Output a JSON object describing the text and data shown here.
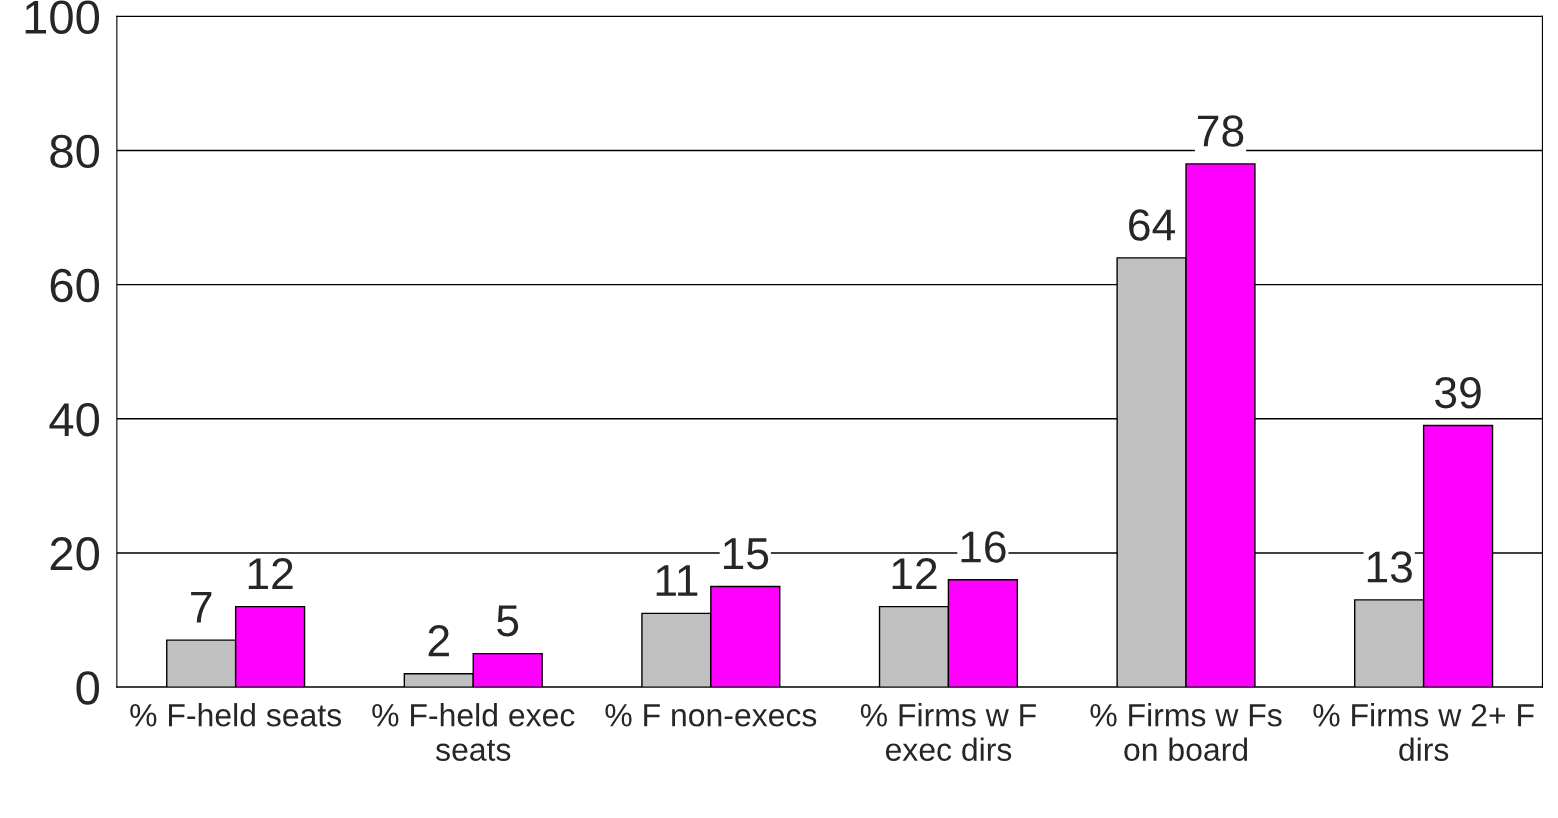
{
  "chart_data": {
    "type": "bar",
    "categories": [
      "% F-held seats",
      "% F-held exec\nseats",
      "% F non-execs",
      "% Firms w F\nexec dirs",
      "% Firms w Fs\non board",
      "% Firms w 2+ F\ndirs"
    ],
    "series": [
      {
        "color": "#c0c0c0",
        "values": [
          7,
          2,
          11,
          12,
          64,
          13
        ]
      },
      {
        "color": "#ff00ff",
        "values": [
          12,
          5,
          15,
          16,
          78,
          39
        ]
      }
    ],
    "ylim": [
      0,
      100
    ],
    "yticks": [
      0,
      20,
      40,
      60,
      80,
      100
    ],
    "grid": "y",
    "data_labels": true
  }
}
